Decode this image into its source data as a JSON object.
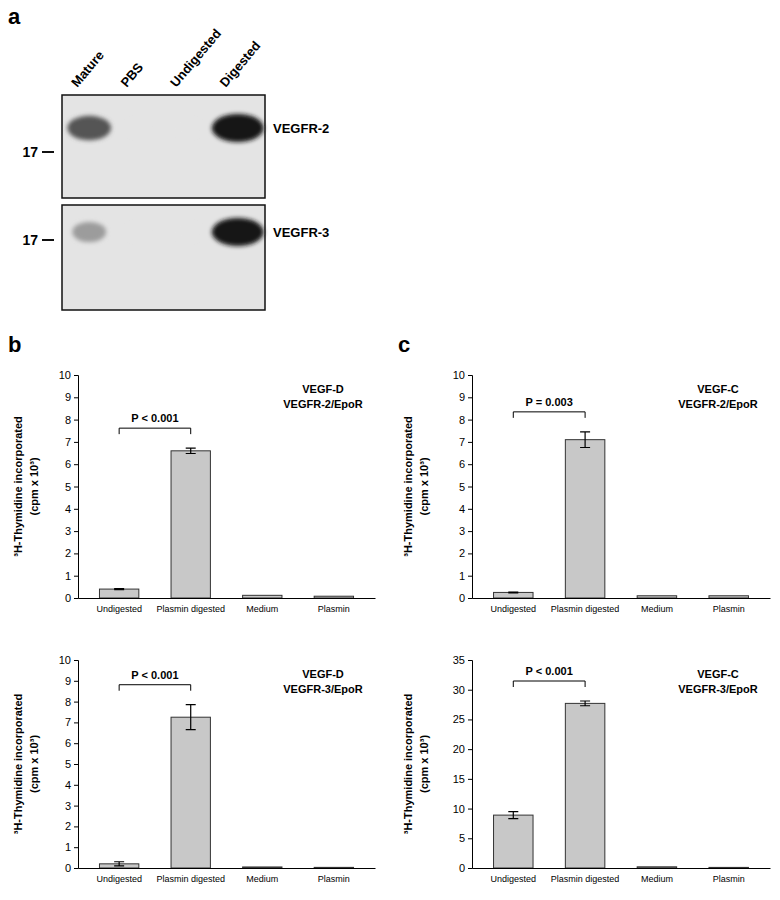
{
  "figure": {
    "panel_labels": [
      "a",
      "b",
      "c"
    ],
    "blot": {
      "lanes": [
        "Mature",
        "PBS",
        "Undigested",
        "Digested"
      ],
      "marker": 17,
      "rows": [
        {
          "label": "VEGFR-2",
          "band_intensity": [
            0.7,
            0,
            0,
            1
          ]
        },
        {
          "label": "VEGFR-3",
          "band_intensity": [
            0.35,
            0,
            0,
            1
          ]
        }
      ]
    }
  },
  "chart_data": [
    {
      "type": "bar",
      "annotations": [
        "VEGF-D",
        "VEGFR-2/EpoR"
      ],
      "ylabel": [
        "³H-Thymidine incorporated",
        "(cpm x 10³)"
      ],
      "categories": [
        "Undigested",
        "Plasmin digested",
        "Medium",
        "Plasmin"
      ],
      "values": [
        0.4,
        6.6,
        0.12,
        0.08
      ],
      "errors": [
        0.02,
        0.12,
        null,
        null
      ],
      "color": "#c8c8c8",
      "ylim": [
        0,
        10
      ],
      "yticks": [
        0,
        1,
        2,
        3,
        4,
        5,
        6,
        7,
        8,
        9,
        10
      ],
      "grid": false,
      "comparison": {
        "label": "P < 0.001",
        "between": [
          "Undigested",
          "Plasmin digested"
        ]
      }
    },
    {
      "type": "bar",
      "annotations": [
        "VEGF-D",
        "VEGFR-3/EpoR"
      ],
      "ylabel": [
        "³H-Thymidine incorporated",
        "(cpm x 10³)"
      ],
      "categories": [
        "Undigested",
        "Plasmin digested",
        "Medium",
        "Plasmin"
      ],
      "values": [
        0.2,
        7.25,
        0.05,
        0.03
      ],
      "errors": [
        0.1,
        0.6,
        null,
        null
      ],
      "color": "#c8c8c8",
      "ylim": [
        0,
        10
      ],
      "yticks": [
        0,
        1,
        2,
        3,
        4,
        5,
        6,
        7,
        8,
        9,
        10
      ],
      "grid": false,
      "comparison": {
        "label": "P < 0.001",
        "between": [
          "Undigested",
          "Plasmin digested"
        ]
      }
    },
    {
      "type": "bar",
      "annotations": [
        "VEGF-C",
        "VEGFR-2/EpoR"
      ],
      "ylabel": [
        "³H-Thymidine incorporated",
        "(cpm x 10³)"
      ],
      "categories": [
        "Undigested",
        "Plasmin digested",
        "Medium",
        "Plasmin"
      ],
      "values": [
        0.25,
        7.1,
        0.1,
        0.1
      ],
      "errors": [
        0.02,
        0.35,
        null,
        null
      ],
      "color": "#c8c8c8",
      "ylim": [
        0,
        10
      ],
      "yticks": [
        0,
        1,
        2,
        3,
        4,
        5,
        6,
        7,
        8,
        9,
        10
      ],
      "grid": false,
      "comparison": {
        "label": "P = 0.003",
        "between": [
          "Undigested",
          "Plasmin digested"
        ]
      }
    },
    {
      "type": "bar",
      "annotations": [
        "VEGF-C",
        "VEGFR-3/EpoR"
      ],
      "ylabel": [
        "³H-Thymidine incorporated",
        "(cpm x 10³)"
      ],
      "categories": [
        "Undigested",
        "Plasmin digested",
        "Medium",
        "Plasmin"
      ],
      "values": [
        8.9,
        27.7,
        0.2,
        0.1
      ],
      "errors": [
        0.6,
        0.4,
        null,
        null
      ],
      "color": "#c8c8c8",
      "ylim": [
        0,
        35
      ],
      "yticks": [
        0,
        5,
        10,
        15,
        20,
        25,
        30,
        35
      ],
      "grid": false,
      "comparison": {
        "label": "P < 0.001",
        "between": [
          "Undigested",
          "Plasmin digested"
        ]
      }
    }
  ]
}
